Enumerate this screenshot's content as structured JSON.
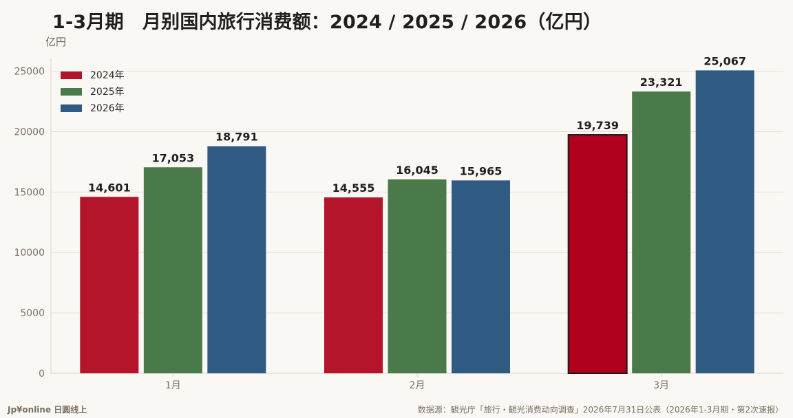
{
  "page": {
    "title": "1-3月期　月别国内旅行消费额：2024 / 2025 / 2026（亿円）",
    "unit_label": "亿円",
    "brand": "Jp¥online 日圆线上",
    "source": "数据源：観光庁「旅行・観光消费动向调查」2026年7月31日公表（2026年1-3月期・第2次速报）"
  },
  "chart_data": {
    "type": "bar",
    "categories": [
      "1月",
      "2月",
      "3月"
    ],
    "series": [
      {
        "name": "2024年",
        "values": [
          14601,
          14555,
          19739
        ],
        "color": "#b5152b"
      },
      {
        "name": "2025年",
        "values": [
          17053,
          16045,
          23321
        ],
        "color": "#4a7a4a"
      },
      {
        "name": "2026年",
        "values": [
          18791,
          15965,
          25067
        ],
        "color": "#2f5a82"
      }
    ],
    "data_labels": [
      [
        "14,601",
        "14,555",
        "19,739"
      ],
      [
        "17,053",
        "16,045",
        "23,321"
      ],
      [
        "18,791",
        "15,965",
        "25,067"
      ]
    ],
    "highlight": {
      "series": 0,
      "category": 2,
      "color": "#b0001e",
      "border": "#1a1a1a"
    },
    "ylim": [
      0,
      26000
    ],
    "yticks": [
      0,
      5000,
      10000,
      15000,
      20000,
      25000
    ],
    "ylabel": "亿円",
    "xlabel": "",
    "grid": true,
    "legend_position": "top-left",
    "grid_color": "#ecdcd6",
    "axis_color": "#d9d2c7",
    "tick_label_color": "#7a7168"
  }
}
